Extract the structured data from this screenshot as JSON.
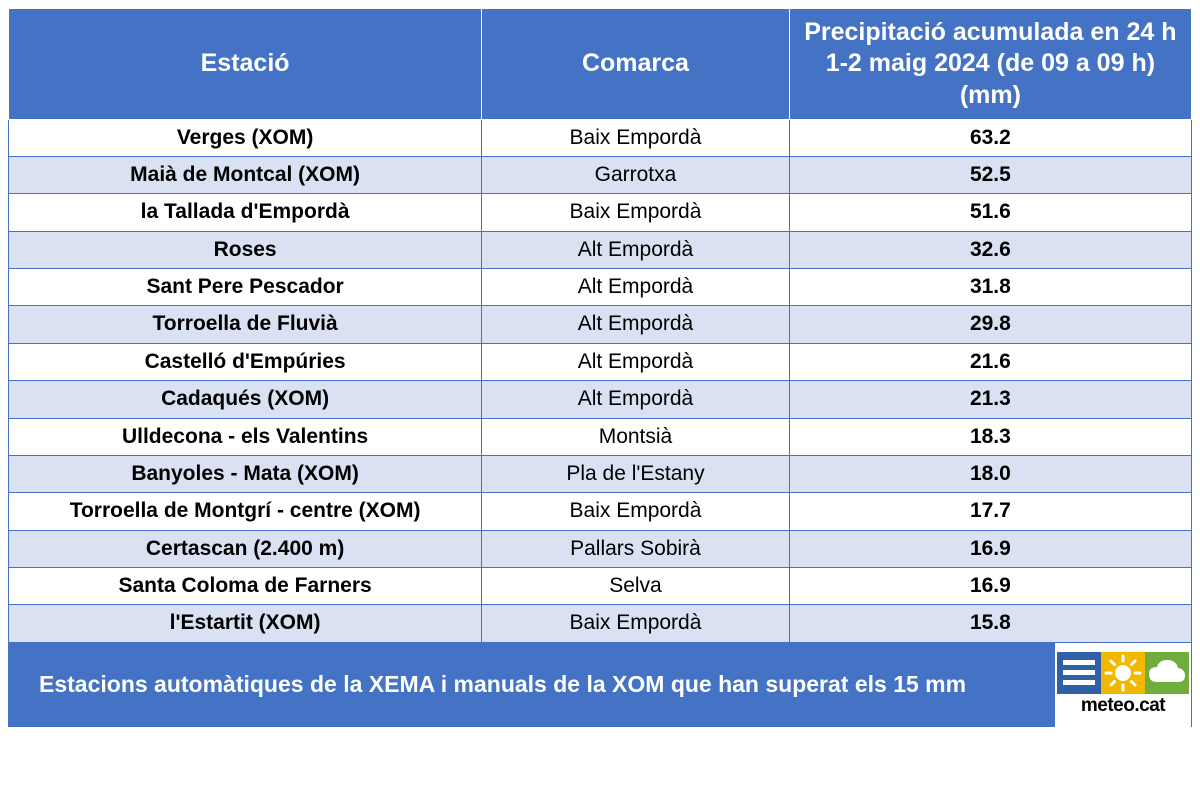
{
  "colors": {
    "header_bg": "#4472c4",
    "header_text": "#ffffff",
    "row_even_bg": "#ffffff",
    "row_odd_bg": "#d9e1f2",
    "border": "#4472c4",
    "footer_bg": "#4472c4",
    "footer_text": "#ffffff",
    "logo_blue": "#2e5fa7",
    "logo_yellow": "#f2b800",
    "logo_green": "#6fae3c",
    "logo_text": "#000000"
  },
  "table": {
    "columns": [
      "Estació",
      "Comarca",
      "Precipitació acumulada en 24 h\n1-2 maig 2024 (de 09 a 09 h)\n(mm)"
    ],
    "rows": [
      {
        "estacio": "Verges (XOM)",
        "comarca": "Baix Empordà",
        "precip": "63.2"
      },
      {
        "estacio": "Maià de Montcal (XOM)",
        "comarca": "Garrotxa",
        "precip": "52.5"
      },
      {
        "estacio": "la Tallada d'Empordà",
        "comarca": "Baix Empordà",
        "precip": "51.6"
      },
      {
        "estacio": "Roses",
        "comarca": "Alt Empordà",
        "precip": "32.6"
      },
      {
        "estacio": "Sant Pere Pescador",
        "comarca": "Alt Empordà",
        "precip": "31.8"
      },
      {
        "estacio": "Torroella de Fluvià",
        "comarca": "Alt Empordà",
        "precip": "29.8"
      },
      {
        "estacio": "Castelló d'Empúries",
        "comarca": "Alt Empordà",
        "precip": "21.6"
      },
      {
        "estacio": "Cadaqués (XOM)",
        "comarca": "Alt Empordà",
        "precip": "21.3"
      },
      {
        "estacio": "Ulldecona - els Valentins",
        "comarca": "Montsià",
        "precip": "18.3"
      },
      {
        "estacio": "Banyoles - Mata (XOM)",
        "comarca": "Pla de l'Estany",
        "precip": "18.0"
      },
      {
        "estacio": "Torroella de Montgrí - centre (XOM)",
        "comarca": "Baix Empordà",
        "precip": "17.7"
      },
      {
        "estacio": "Certascan (2.400 m)",
        "comarca": "Pallars Sobirà",
        "precip": "16.9"
      },
      {
        "estacio": "Santa Coloma de Farners",
        "comarca": "Selva",
        "precip": "16.9"
      },
      {
        "estacio": "l'Estartit (XOM)",
        "comarca": "Baix Empordà",
        "precip": "15.8"
      }
    ]
  },
  "footer": {
    "text": "Estacions automàtiques de la XEMA i manuals de la XOM que han superat els 15 mm",
    "logo_text": "meteo.cat"
  }
}
